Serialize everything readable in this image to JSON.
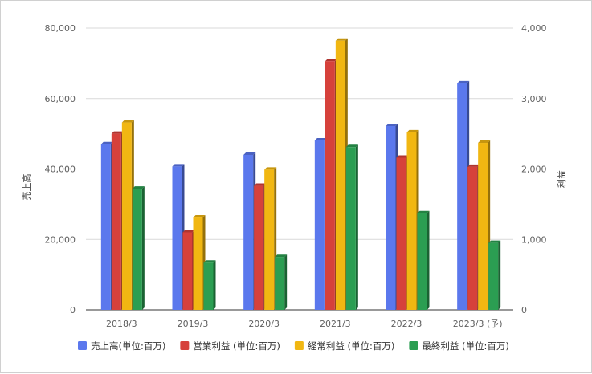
{
  "chart_data": {
    "type": "bar",
    "categories": [
      "2018/3",
      "2019/3",
      "2020/3",
      "2021/3",
      "2022/3",
      "2023/3 (予)"
    ],
    "series": [
      {
        "name": "売上高(単位:百万)",
        "axis": "left",
        "color": "#5b78ed",
        "values": [
          47000,
          40700,
          44000,
          48100,
          52200,
          64300
        ]
      },
      {
        "name": "営業利益 (単位:百万)",
        "axis": "right",
        "color": "#d6413b",
        "values": [
          2500,
          1100,
          1760,
          3530,
          2160,
          2030
        ]
      },
      {
        "name": "経常利益 (単位:百万)",
        "axis": "right",
        "color": "#f1b712",
        "values": [
          2660,
          1310,
          1990,
          3820,
          2520,
          2370
        ]
      },
      {
        "name": "最終利益 (単位:百万)",
        "axis": "right",
        "color": "#2b9e52",
        "values": [
          1720,
          670,
          750,
          2310,
          1370,
          950
        ]
      }
    ],
    "ylabel_left": "売上高",
    "ylabel_right": "利益",
    "ylim_left": [
      0,
      80000
    ],
    "ylim_right": [
      0,
      4000
    ],
    "yticks_left": [
      "0",
      "20,000",
      "40,000",
      "60,000",
      "80,000"
    ],
    "yticks_right": [
      "0",
      "1,000",
      "2,000",
      "3,000",
      "4,000"
    ],
    "grid": true,
    "legend_position": "bottom"
  }
}
